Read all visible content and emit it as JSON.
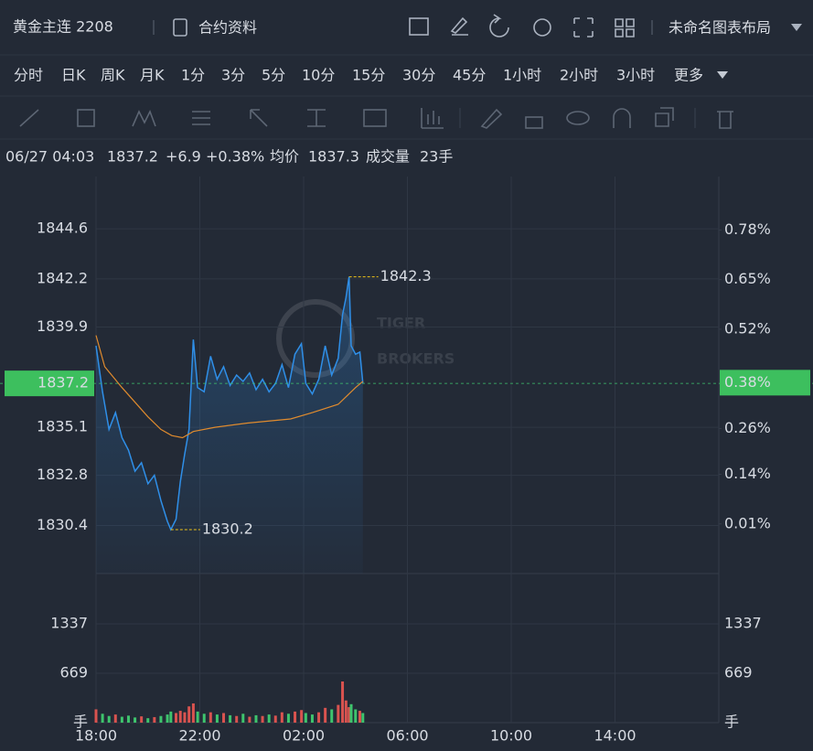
{
  "header": {
    "title": "黄金主连 2208",
    "contract_info": "合约资料",
    "layout_name": "未命名图表布局"
  },
  "periods": {
    "items": [
      "分时",
      "日K",
      "周K",
      "月K",
      "1分",
      "3分",
      "5分",
      "10分",
      "15分",
      "30分",
      "45分",
      "1小时",
      "2小时",
      "3小时",
      "更多"
    ],
    "active": 0
  },
  "info": {
    "time": "06/27 04:03",
    "price": "1837.2",
    "change": "+6.9",
    "change_pct": "+0.38%",
    "avg_label": "均价",
    "avg": "1837.3",
    "volume_label": "成交量",
    "volume": "23手"
  },
  "watermark": [
    "TIGER",
    "BROKERS"
  ],
  "chart_data": {
    "type": "line",
    "x": [
      0,
      15,
      30,
      45,
      60,
      75,
      90,
      105,
      120,
      135,
      150,
      165,
      173,
      185,
      195,
      205,
      215,
      225,
      235,
      250,
      265,
      280,
      295,
      310,
      325,
      340,
      355,
      370,
      385,
      400,
      415,
      430,
      445,
      460,
      475,
      485,
      500,
      515,
      530,
      545,
      560,
      570,
      578,
      585,
      590,
      600,
      610,
      617
    ],
    "xlim": [
      0,
      1440
    ],
    "xticks": [
      {
        "value": 0,
        "label": "18:00"
      },
      {
        "value": 240,
        "label": "22:00"
      },
      {
        "value": 480,
        "label": "02:00"
      },
      {
        "value": 720,
        "label": "06:00"
      },
      {
        "value": 960,
        "label": "10:00"
      },
      {
        "value": 1200,
        "label": "14:00"
      }
    ],
    "ylim": [
      1828.1,
      1847.1
    ],
    "yticks": [
      1844.6,
      1842.2,
      1839.9,
      1835.1,
      1832.8,
      1830.4
    ],
    "y2lim": [
      -0.12,
      0.92
    ],
    "y2ticks": [
      {
        "value": 0.78,
        "label": "0.78%"
      },
      {
        "value": 0.65,
        "label": "0.65%"
      },
      {
        "value": 0.52,
        "label": "0.52%"
      },
      {
        "value": 0.26,
        "label": "0.26%"
      },
      {
        "value": 0.14,
        "label": "0.14%"
      },
      {
        "value": 0.01,
        "label": "0.01%"
      }
    ],
    "price": {
      "color": "#2f8fe8",
      "values": [
        1839.0,
        1836.8,
        1835.0,
        1835.8,
        1834.6,
        1834.0,
        1833.0,
        1833.4,
        1832.4,
        1832.8,
        1831.6,
        1830.6,
        1830.2,
        1830.7,
        1832.5,
        1833.8,
        1835.0,
        1839.3,
        1837.0,
        1836.8,
        1838.5,
        1837.4,
        1838.0,
        1837.1,
        1837.6,
        1837.3,
        1837.7,
        1836.9,
        1837.4,
        1836.8,
        1837.2,
        1838.1,
        1837.0,
        1838.6,
        1839.1,
        1837.2,
        1836.7,
        1837.4,
        1839.0,
        1837.6,
        1838.4,
        1840.5,
        1841.3,
        1842.3,
        1839.0,
        1838.6,
        1838.7,
        1837.2
      ]
    },
    "average": {
      "color": "#e08b2e",
      "x": [
        0,
        20,
        40,
        60,
        90,
        120,
        150,
        175,
        200,
        225,
        275,
        350,
        450,
        500,
        560,
        600,
        617
      ],
      "values": [
        1839.5,
        1838.0,
        1837.5,
        1837.0,
        1836.3,
        1835.6,
        1835.0,
        1834.7,
        1834.6,
        1834.9,
        1835.1,
        1835.3,
        1835.5,
        1835.8,
        1836.2,
        1837.0,
        1837.3
      ]
    },
    "current": {
      "value": 1837.2,
      "pct": 0.38,
      "pct_label": "0.38%"
    },
    "high": {
      "value": 1842.3,
      "x": 585
    },
    "low": {
      "value": 1830.2,
      "x": 173
    },
    "volume": {
      "ylim": [
        0,
        1980
      ],
      "yticks": [
        1337,
        669
      ],
      "unit": "手",
      "up_color": "#d9534f",
      "down_color": "#3ec46d",
      "values": [
        180,
        120,
        90,
        110,
        80,
        95,
        70,
        85,
        60,
        75,
        90,
        110,
        150,
        130,
        160,
        140,
        220,
        260,
        150,
        120,
        140,
        110,
        130,
        100,
        90,
        120,
        80,
        100,
        90,
        110,
        95,
        140,
        120,
        150,
        170,
        130,
        110,
        140,
        200,
        180,
        240,
        557,
        300,
        210,
        250,
        180,
        160,
        130
      ]
    },
    "grid": true
  }
}
